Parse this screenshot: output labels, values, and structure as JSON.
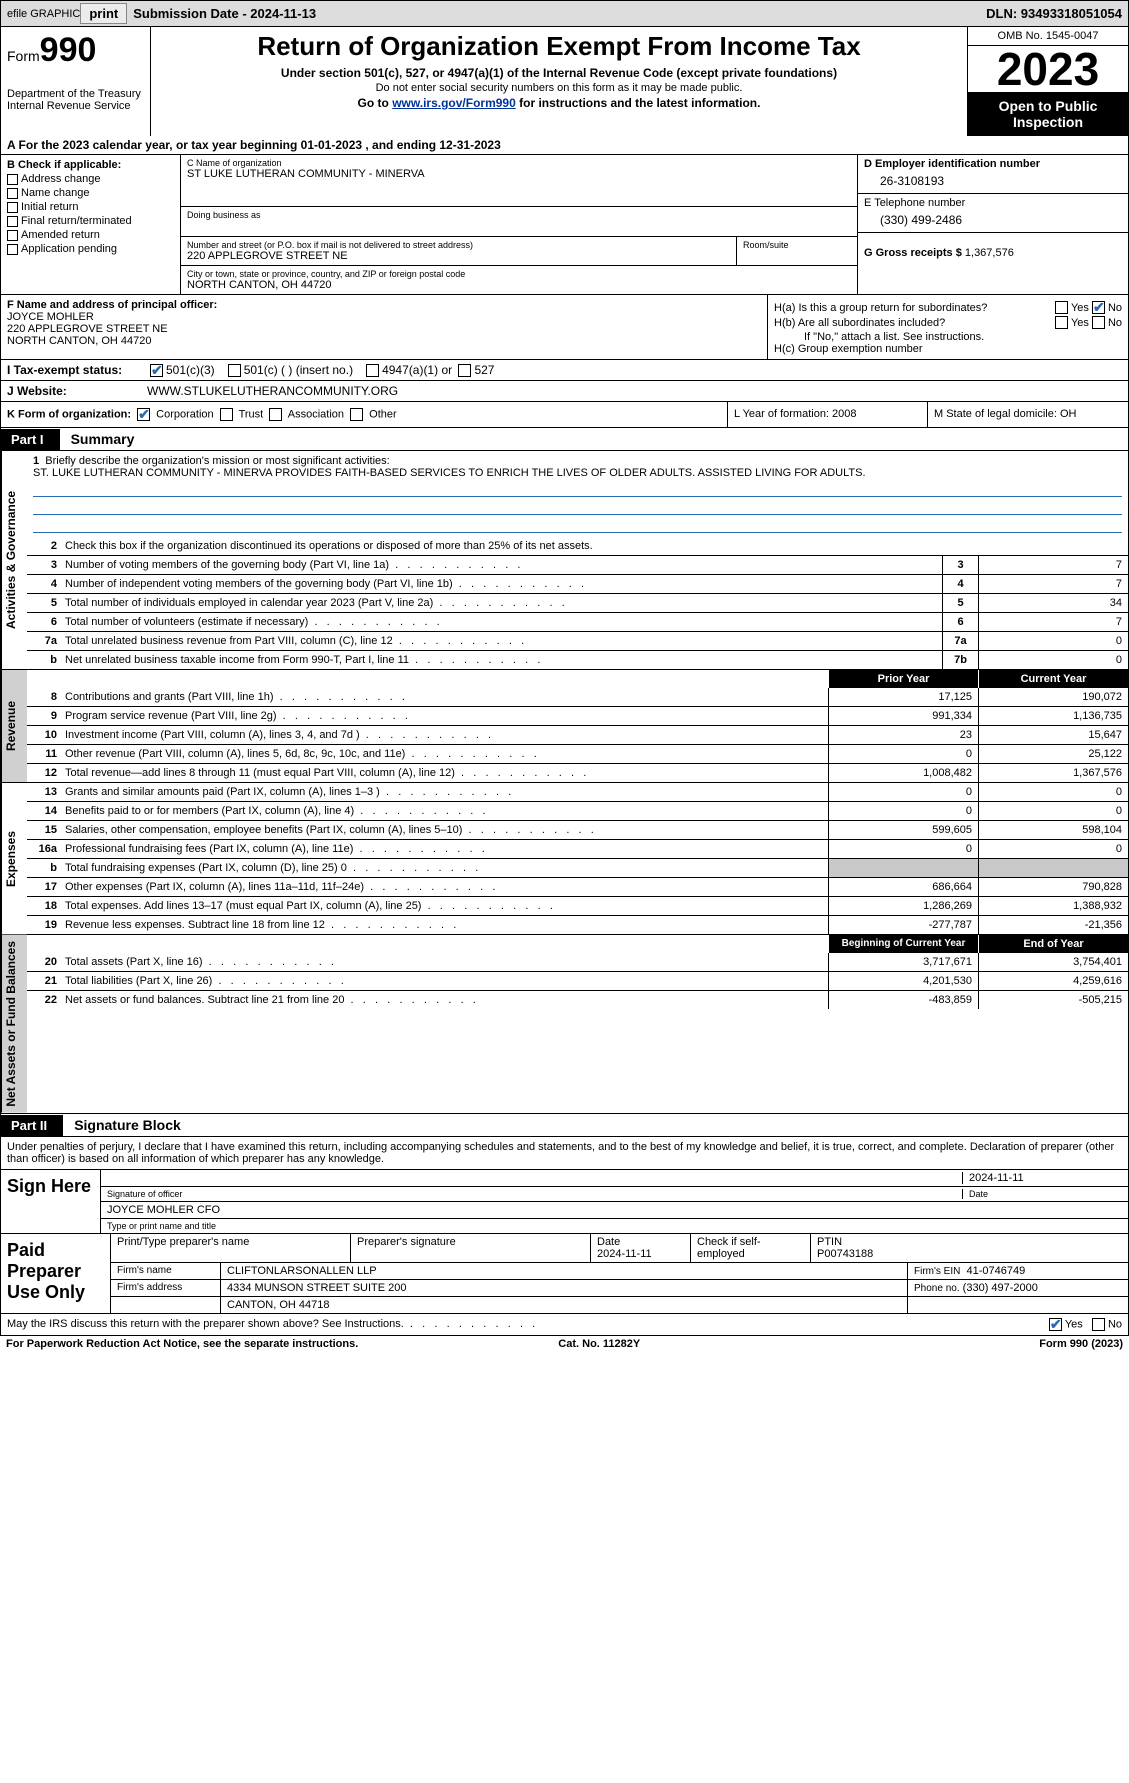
{
  "topbar": {
    "efile_label": "efile GRAPHIC",
    "print_btn": "print",
    "submission": "Submission Date - 2024-11-13",
    "dln": "DLN: 93493318051054"
  },
  "header": {
    "form_prefix": "Form",
    "form_number": "990",
    "dept": "Department of the Treasury",
    "irs": "Internal Revenue Service",
    "title": "Return of Organization Exempt From Income Tax",
    "sub1": "Under section 501(c), 527, or 4947(a)(1) of the Internal Revenue Code (except private foundations)",
    "sub2": "Do not enter social security numbers on this form as it may be made public.",
    "sub3_pre": "Go to ",
    "sub3_link": "www.irs.gov/Form990",
    "sub3_post": " for instructions and the latest information.",
    "omb": "OMB No. 1545-0047",
    "year": "2023",
    "open": "Open to Public Inspection"
  },
  "rowA": "A   For the 2023 calendar year, or tax year beginning 01-01-2023    , and ending 12-31-2023",
  "colB": {
    "hdr": "B Check if applicable:",
    "opts": [
      "Address change",
      "Name change",
      "Initial return",
      "Final return/terminated",
      "Amended return",
      "Application pending"
    ]
  },
  "colC": {
    "name_lbl": "C Name of organization",
    "name": "ST LUKE LUTHERAN COMMUNITY - MINERVA",
    "dba_lbl": "Doing business as",
    "dba": "",
    "street_lbl": "Number and street (or P.O. box if mail is not delivered to street address)",
    "room_lbl": "Room/suite",
    "street": "220 APPLEGROVE STREET NE",
    "city_lbl": "City or town, state or province, country, and ZIP or foreign postal code",
    "city": "NORTH CANTON, OH  44720"
  },
  "colDE": {
    "d_lbl": "D Employer identification number",
    "d_val": "26-3108193",
    "e_lbl": "E Telephone number",
    "e_val": "(330) 499-2486",
    "g_lbl": "G Gross receipts $ ",
    "g_val": "1,367,576"
  },
  "colF": {
    "lbl": "F Name and address of principal officer:",
    "name": "JOYCE MOHLER",
    "street": "220 APPLEGROVE STREET NE",
    "city": "NORTH CANTON, OH  44720"
  },
  "colH": {
    "ha": "H(a)  Is this a group return for subordinates?",
    "hb": "H(b)  Are all subordinates included?",
    "hb_note": "If \"No,\" attach a list. See instructions.",
    "hc": "H(c)  Group exemption number",
    "yes": "Yes",
    "no": "No"
  },
  "rowI": {
    "lbl": "I    Tax-exempt status:",
    "o1": "501(c)(3)",
    "o2": "501(c) (  ) (insert no.)",
    "o3": "4947(a)(1) or",
    "o4": "527"
  },
  "rowJ": {
    "lbl": "J    Website:",
    "val": "WWW.STLUKELUTHERANCOMMUNITY.ORG"
  },
  "rowK": {
    "k": "K Form of organization:",
    "corp": "Corporation",
    "trust": "Trust",
    "assoc": "Association",
    "other": "Other",
    "l": "L Year of formation: 2008",
    "m": "M State of legal domicile: OH"
  },
  "parts": {
    "p1": "Part I",
    "p1_title": "Summary",
    "p2": "Part II",
    "p2_title": "Signature Block"
  },
  "mission": {
    "lbl": "Briefly describe the organization's mission or most significant activities:",
    "text": "ST. LUKE LUTHERAN COMMUNITY - MINERVA PROVIDES FAITH-BASED SERVICES TO ENRICH THE LIVES OF OLDER ADULTS. ASSISTED LIVING FOR ADULTS."
  },
  "line2": "Check this box      if the organization discontinued its operations or disposed of more than 25% of its net assets.",
  "vtabs": {
    "gov": "Activities & Governance",
    "rev": "Revenue",
    "exp": "Expenses",
    "net": "Net Assets or Fund Balances"
  },
  "gov_lines": [
    {
      "n": "3",
      "d": "Number of voting members of the governing body (Part VI, line 1a)",
      "box": "3",
      "v": "7"
    },
    {
      "n": "4",
      "d": "Number of independent voting members of the governing body (Part VI, line 1b)",
      "box": "4",
      "v": "7"
    },
    {
      "n": "5",
      "d": "Total number of individuals employed in calendar year 2023 (Part V, line 2a)",
      "box": "5",
      "v": "34"
    },
    {
      "n": "6",
      "d": "Total number of volunteers (estimate if necessary)",
      "box": "6",
      "v": "7"
    },
    {
      "n": "7a",
      "d": "Total unrelated business revenue from Part VIII, column (C), line 12",
      "box": "7a",
      "v": "0"
    },
    {
      "n": "b",
      "d": "Net unrelated business taxable income from Form 990-T, Part I, line 11",
      "box": "7b",
      "v": "0"
    }
  ],
  "yearhdr": {
    "prior": "Prior Year",
    "current": "Current Year"
  },
  "rev_lines": [
    {
      "n": "8",
      "d": "Contributions and grants (Part VIII, line 1h)",
      "p": "17,125",
      "c": "190,072"
    },
    {
      "n": "9",
      "d": "Program service revenue (Part VIII, line 2g)",
      "p": "991,334",
      "c": "1,136,735"
    },
    {
      "n": "10",
      "d": "Investment income (Part VIII, column (A), lines 3, 4, and 7d )",
      "p": "23",
      "c": "15,647"
    },
    {
      "n": "11",
      "d": "Other revenue (Part VIII, column (A), lines 5, 6d, 8c, 9c, 10c, and 11e)",
      "p": "0",
      "c": "25,122"
    },
    {
      "n": "12",
      "d": "Total revenue—add lines 8 through 11 (must equal Part VIII, column (A), line 12)",
      "p": "1,008,482",
      "c": "1,367,576"
    }
  ],
  "exp_lines": [
    {
      "n": "13",
      "d": "Grants and similar amounts paid (Part IX, column (A), lines 1–3 )",
      "p": "0",
      "c": "0"
    },
    {
      "n": "14",
      "d": "Benefits paid to or for members (Part IX, column (A), line 4)",
      "p": "0",
      "c": "0"
    },
    {
      "n": "15",
      "d": "Salaries, other compensation, employee benefits (Part IX, column (A), lines 5–10)",
      "p": "599,605",
      "c": "598,104"
    },
    {
      "n": "16a",
      "d": "Professional fundraising fees (Part IX, column (A), line 11e)",
      "p": "0",
      "c": "0"
    },
    {
      "n": "b",
      "d": "Total fundraising expenses (Part IX, column (D), line 25) 0",
      "p": "",
      "c": "",
      "shade": true
    },
    {
      "n": "17",
      "d": "Other expenses (Part IX, column (A), lines 11a–11d, 11f–24e)",
      "p": "686,664",
      "c": "790,828"
    },
    {
      "n": "18",
      "d": "Total expenses. Add lines 13–17 (must equal Part IX, column (A), line 25)",
      "p": "1,286,269",
      "c": "1,388,932"
    },
    {
      "n": "19",
      "d": "Revenue less expenses. Subtract line 18 from line 12",
      "p": "-277,787",
      "c": "-21,356"
    }
  ],
  "nethdr": {
    "beg": "Beginning of Current Year",
    "end": "End of Year"
  },
  "net_lines": [
    {
      "n": "20",
      "d": "Total assets (Part X, line 16)",
      "p": "3,717,671",
      "c": "3,754,401"
    },
    {
      "n": "21",
      "d": "Total liabilities (Part X, line 26)",
      "p": "4,201,530",
      "c": "4,259,616"
    },
    {
      "n": "22",
      "d": "Net assets or fund balances. Subtract line 21 from line 20",
      "p": "-483,859",
      "c": "-505,215"
    }
  ],
  "sig_intro": "Under penalties of perjury, I declare that I have examined this return, including accompanying schedules and statements, and to the best of my knowledge and belief, it is true, correct, and complete. Declaration of preparer (other than officer) is based on all information of which preparer has any knowledge.",
  "sign": {
    "left": "Sign Here",
    "date": "2024-11-11",
    "sig_lbl": "Signature of officer",
    "date_lbl": "Date",
    "name": "JOYCE MOHLER  CFO",
    "name_lbl": "Type or print name and title"
  },
  "paid": {
    "left": "Paid Preparer Use Only",
    "h1": "Print/Type preparer's name",
    "h2": "Preparer's signature",
    "h3": "Date",
    "h3v": "2024-11-11",
    "h4": "Check        if self-employed",
    "h5": "PTIN",
    "h5v": "P00743188",
    "firm_lbl": "Firm's name",
    "firm": "CLIFTONLARSONALLEN LLP",
    "ein_lbl": "Firm's EIN",
    "ein": "41-0746749",
    "addr_lbl": "Firm's address",
    "addr1": "4334 MUNSON STREET SUITE 200",
    "addr2": "CANTON, OH  44718",
    "phone_lbl": "Phone no.",
    "phone": "(330) 497-2000"
  },
  "footer": {
    "q": "May the IRS discuss this return with the preparer shown above? See Instructions.",
    "yes": "Yes",
    "no": "No"
  },
  "bottom": {
    "l": "For Paperwork Reduction Act Notice, see the separate instructions.",
    "m": "Cat. No. 11282Y",
    "r": "Form 990 (2023)"
  }
}
